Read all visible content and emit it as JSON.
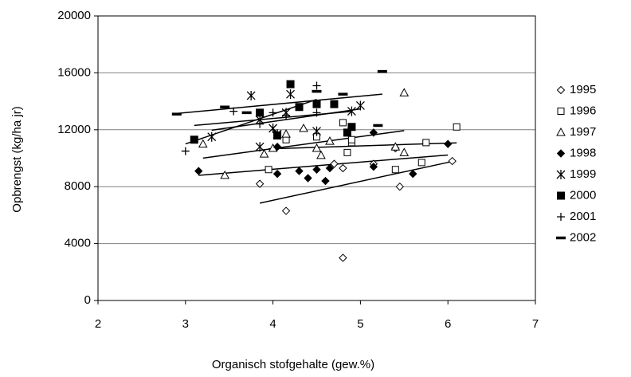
{
  "chart_data": {
    "type": "scatter",
    "x_label": "Organisch stofgehalte (gew.%)",
    "y_label": "Opbrengst (kg/ha jr)",
    "xlim": [
      2,
      7
    ],
    "xticks": [
      2,
      3,
      4,
      5,
      6,
      7
    ],
    "ylim": [
      0,
      20000
    ],
    "yticks": [
      0,
      4000,
      8000,
      12000,
      16000,
      20000
    ],
    "grid": true,
    "trendline": true,
    "legend": "right",
    "series": [
      {
        "name": "1995",
        "marker": "diamond-open",
        "color": "#000000",
        "x": [
          3.85,
          4.15,
          4.7,
          4.8,
          4.8,
          5.15,
          5.4,
          5.45,
          6.05
        ],
        "values": [
          8200,
          6300,
          9600,
          9300,
          3000,
          9600,
          10700,
          8000,
          9800
        ]
      },
      {
        "name": "1996",
        "marker": "square-open",
        "color": "#000000",
        "x": [
          3.95,
          4.15,
          4.5,
          4.8,
          4.85,
          4.9,
          4.9,
          5.4,
          5.7,
          5.75,
          6.1
        ],
        "values": [
          9200,
          11300,
          11500,
          12500,
          10400,
          11100,
          11300,
          9200,
          9700,
          11100,
          12200
        ]
      },
      {
        "name": "1997",
        "marker": "triangle-open",
        "color": "#000000",
        "x": [
          3.2,
          3.45,
          3.9,
          4.0,
          4.15,
          4.35,
          4.5,
          4.55,
          4.65,
          5.4,
          5.5,
          5.5
        ],
        "values": [
          11000,
          8800,
          10300,
          10700,
          11700,
          12100,
          10700,
          10200,
          11200,
          10800,
          10400,
          14600
        ]
      },
      {
        "name": "1998",
        "marker": "diamond-filled",
        "color": "#000000",
        "x": [
          3.15,
          4.05,
          4.05,
          4.3,
          4.4,
          4.5,
          4.6,
          4.65,
          5.15,
          5.15,
          5.6,
          6.0
        ],
        "values": [
          9100,
          10800,
          8900,
          9100,
          8600,
          9200,
          8400,
          9300,
          9400,
          11800,
          8900,
          11000
        ]
      },
      {
        "name": "1999",
        "marker": "asterisk",
        "color": "#000000",
        "x": [
          3.3,
          3.75,
          3.85,
          3.85,
          4.0,
          4.05,
          4.15,
          4.2,
          4.5,
          4.9,
          5.0
        ],
        "values": [
          11500,
          14400,
          12700,
          10800,
          12100,
          11700,
          13200,
          14500,
          11900,
          13300,
          13700
        ]
      },
      {
        "name": "2000",
        "marker": "square-filled",
        "color": "#000000",
        "x": [
          3.1,
          3.85,
          4.05,
          4.2,
          4.3,
          4.5,
          4.7,
          4.85,
          4.9
        ],
        "values": [
          11300,
          13200,
          11600,
          15200,
          13600,
          13800,
          13800,
          11800,
          12200
        ]
      },
      {
        "name": "2001",
        "marker": "plus",
        "color": "#000000",
        "x": [
          3.0,
          3.55,
          3.85,
          4.0,
          4.15,
          4.5,
          4.5
        ],
        "values": [
          10500,
          13300,
          12400,
          13200,
          13000,
          15100,
          13200
        ]
      },
      {
        "name": "2002",
        "marker": "dash",
        "color": "#000000",
        "x": [
          2.9,
          3.45,
          3.7,
          4.5,
          4.8,
          5.2,
          5.25
        ],
        "values": [
          13100,
          13600,
          13200,
          14700,
          14500,
          12300,
          16100
        ]
      }
    ]
  }
}
